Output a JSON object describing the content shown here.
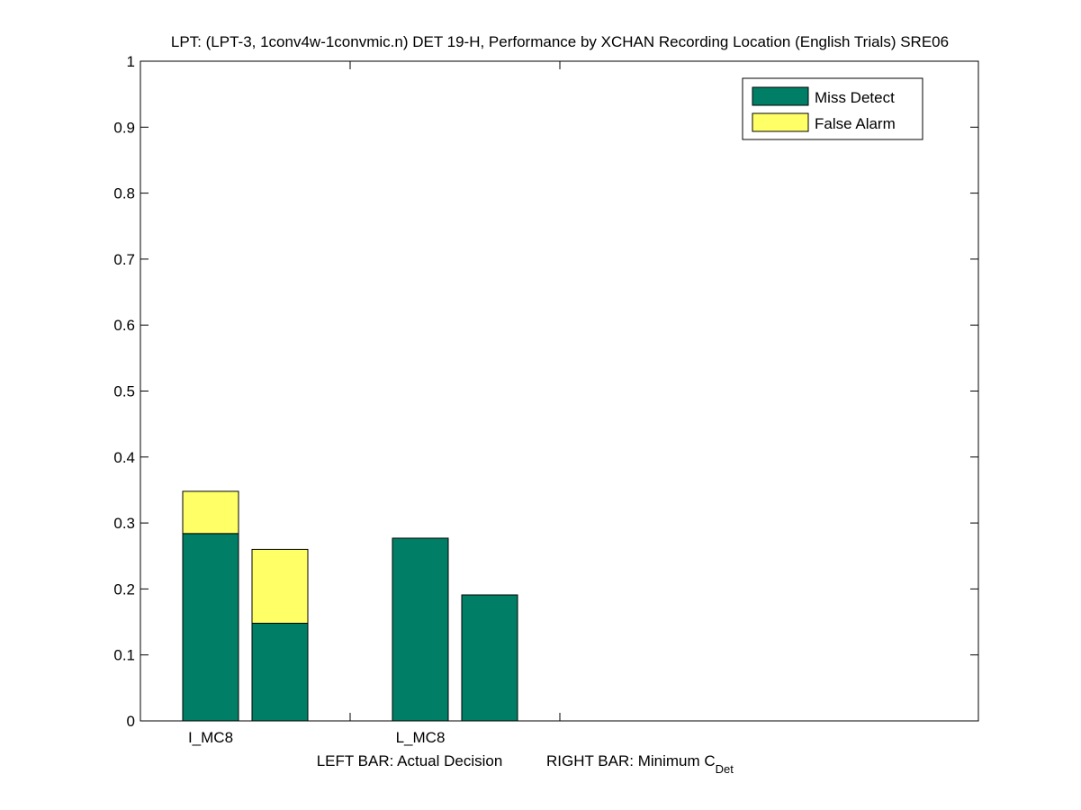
{
  "chart_data": {
    "type": "bar",
    "title": "LPT: (LPT-3, 1conv4w-1convmic.n) DET 19-H,  Performance by XCHAN Recording Location (English Trials) SRE06",
    "xlabel": {
      "left": "LEFT BAR: Actual Decision",
      "right": "RIGHT BAR: Minimum C",
      "right_subscript": "Det"
    },
    "ylabel": "",
    "ylim": [
      0,
      1
    ],
    "yticks": [
      "0",
      "0.1",
      "0.2",
      "0.3",
      "0.4",
      "0.5",
      "0.6",
      "0.7",
      "0.8",
      "0.9",
      "1"
    ],
    "categories": [
      "I_MC8",
      "L_MC8"
    ],
    "stacked": true,
    "grid": false,
    "legend_position": "top-right",
    "bar_groups": [
      {
        "category": "I_MC8",
        "bars": [
          {
            "role": "Actual Decision",
            "miss": 0.284,
            "false_alarm": 0.064
          },
          {
            "role": "Minimum C_Det",
            "miss": 0.148,
            "false_alarm": 0.112
          }
        ]
      },
      {
        "category": "L_MC8",
        "bars": [
          {
            "role": "Actual Decision",
            "miss": 0.277,
            "false_alarm": 0.0
          },
          {
            "role": "Minimum C_Det",
            "miss": 0.191,
            "false_alarm": 0.0
          }
        ]
      }
    ],
    "series": [
      {
        "name": "Miss Detect",
        "color": "#007f66"
      },
      {
        "name": "False Alarm",
        "color": "#ffff66"
      }
    ]
  }
}
